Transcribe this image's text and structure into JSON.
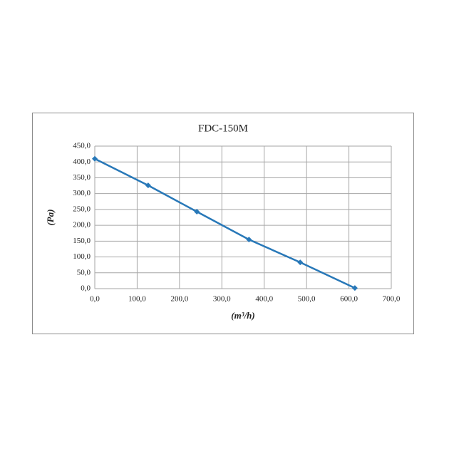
{
  "chart_data": {
    "type": "line",
    "title": "FDC-150M",
    "x_label": "(m³/h)",
    "y_label": "(Pa)",
    "x": [
      0,
      126,
      241,
      364,
      485,
      614
    ],
    "series": [
      {
        "name": "FDC-150M",
        "color": "#2878b8",
        "values": [
          410,
          326,
          243,
          155,
          83,
          2
        ]
      }
    ],
    "xlim": [
      0,
      700
    ],
    "xticks": [
      {
        "value": 0,
        "label": "0,0"
      },
      {
        "value": 100,
        "label": "100,0"
      },
      {
        "value": 200,
        "label": "200,0"
      },
      {
        "value": 300,
        "label": "300,0"
      },
      {
        "value": 400,
        "label": "400,0"
      },
      {
        "value": 500,
        "label": "500,0"
      },
      {
        "value": 600,
        "label": "600,0"
      },
      {
        "value": 700,
        "label": "700,0"
      }
    ],
    "ylim": [
      0,
      450
    ],
    "yticks": [
      {
        "value": 0,
        "label": "0,0"
      },
      {
        "value": 50,
        "label": "50,0"
      },
      {
        "value": 100,
        "label": "100,0"
      },
      {
        "value": 150,
        "label": "150,0"
      },
      {
        "value": 200,
        "label": "200,0"
      },
      {
        "value": 250,
        "label": "250,0"
      },
      {
        "value": 300,
        "label": "300,0"
      },
      {
        "value": 350,
        "label": "350,0"
      },
      {
        "value": 400,
        "label": "400,0"
      },
      {
        "value": 450,
        "label": "450,0"
      }
    ],
    "grid": true
  }
}
